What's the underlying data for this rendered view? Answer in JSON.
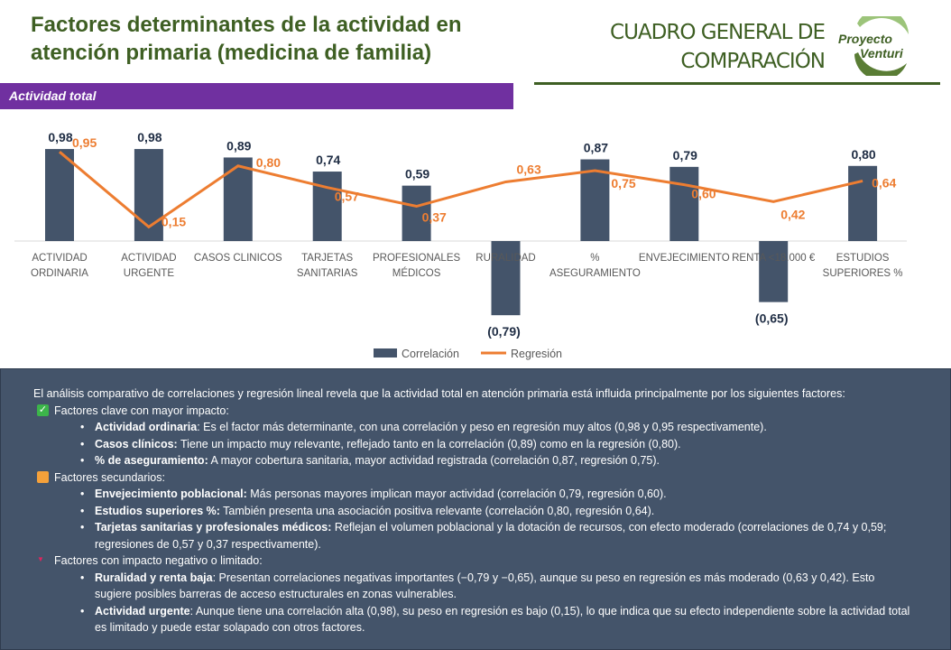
{
  "header": {
    "title": "Factores determinantes de la actividad en atención primaria (medicina de familia)",
    "subtitle": "CUADRO GENERAL DE COMPARACIÓN",
    "logo_text": "Proyecto Venturi"
  },
  "band": {
    "label": "Actividad  total"
  },
  "colors": {
    "bar": "#44546a",
    "line": "#ed7d31",
    "band": "#7030a0",
    "green": "#3e5f23"
  },
  "chart_data": {
    "type": "bar+line",
    "categories": [
      "ACTIVIDAD ORDINARIA",
      "ACTIVIDAD URGENTE",
      "CASOS CLINICOS",
      "TARJETAS SANITARIAS",
      "PROFESIONALES MÉDICOS",
      "RURALIDAD",
      "% ASEGURAMIENTO",
      "ENVEJECIMIENTO",
      "RENTA <18.000 €",
      "ESTUDIOS SUPERIORES %"
    ],
    "series": [
      {
        "name": "Correlación",
        "type": "bar",
        "values": [
          0.98,
          0.98,
          0.89,
          0.74,
          0.59,
          -0.79,
          0.87,
          0.79,
          -0.65,
          0.8
        ],
        "labels": [
          "0,98",
          "0,98",
          "0,89",
          "0,74",
          "0,59",
          "(0,79)",
          "0,87",
          "0,79",
          "(0,65)",
          "0,80"
        ]
      },
      {
        "name": "Regresión",
        "type": "line",
        "values": [
          0.95,
          0.15,
          0.8,
          0.57,
          0.37,
          0.63,
          0.75,
          0.6,
          0.42,
          0.64
        ],
        "labels": [
          "0,95",
          "0,15",
          "0,80",
          "0,57",
          "0,37",
          "0,63",
          "0,75",
          "0,60",
          "0,42",
          "0,64"
        ]
      }
    ],
    "legend": "bottom",
    "grid": false
  },
  "analysis": {
    "intro": "El análisis comparativo de correlaciones y regresión lineal revela que la actividad total en atención primaria está influida principalmente por los siguientes factores:",
    "groups": [
      {
        "icon": "check-icon",
        "title": "Factores clave con mayor impacto:",
        "items": [
          {
            "b": "Actividad ordinaria",
            "t": ": Es el factor más determinante, con una correlación y peso en regresión muy altos (0,98 y 0,95 respectivamente)."
          },
          {
            "b": "Casos clínicos:",
            "t": " Tiene un impacto muy relevante, reflejado tanto en la correlación (0,89) como en la regresión (0,80)."
          },
          {
            "b": "% de aseguramiento:",
            "t": " A mayor cobertura sanitaria, mayor actividad registrada (correlación 0,87, regresión 0,75)."
          }
        ]
      },
      {
        "icon": "orange-square-icon",
        "title": "Factores secundarios:",
        "items": [
          {
            "b": "Envejecimiento poblacional:",
            "t": " Más personas mayores implican mayor actividad (correlación 0,79, regresión 0,60)."
          },
          {
            "b": "Estudios superiores %:",
            "t": " También presenta una asociación positiva relevante (correlación 0,80, regresión 0,64)."
          },
          {
            "b": "Tarjetas sanitarias y profesionales médicos:",
            "t": " Reflejan el volumen poblacional y la dotación de recursos, con efecto moderado (correlaciones de 0,74 y 0,59; regresiones de 0,57 y 0,37 respectivamente)."
          }
        ]
      },
      {
        "icon": "red-triangle-icon",
        "title": "Factores con impacto negativo o limitado:",
        "items": [
          {
            "b": "Ruralidad y renta baja",
            "t": ": Presentan correlaciones negativas importantes (−0,79 y −0,65), aunque su peso en regresión es más moderado (0,63 y 0,42). Esto sugiere posibles barreras de acceso estructurales en zonas vulnerables."
          },
          {
            "b": "Actividad urgente",
            "t": ": Aunque tiene una correlación alta (0,98), su peso en regresión es bajo (0,15), lo que indica que su efecto independiente sobre la actividad total es limitado y puede estar solapado con otros factores."
          }
        ]
      }
    ]
  }
}
